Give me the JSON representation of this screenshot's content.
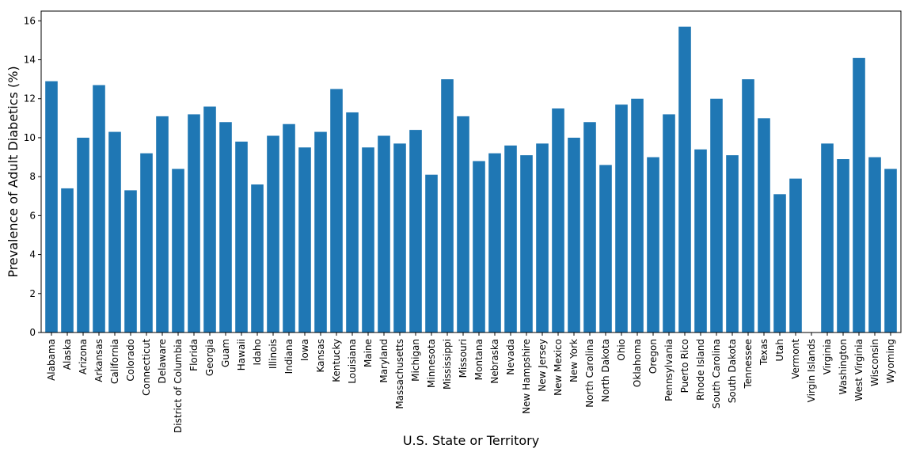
{
  "chart_data": {
    "type": "bar",
    "title": "",
    "xlabel": "U.S. State or Territory",
    "ylabel": "Prevalence of Adult Diabetics (%)",
    "ylim": [
      0,
      16.5
    ],
    "yticks": [
      0,
      2,
      4,
      6,
      8,
      10,
      12,
      14,
      16
    ],
    "grid": false,
    "bar_color": "#1f77b4",
    "categories": [
      "Alabama",
      "Alaska",
      "Arizona",
      "Arkansas",
      "California",
      "Colorado",
      "Connecticut",
      "Delaware",
      "District of Columbia",
      "Florida",
      "Georgia",
      "Guam",
      "Hawaii",
      "Idaho",
      "Illinois",
      "Indiana",
      "Iowa",
      "Kansas",
      "Kentucky",
      "Louisiana",
      "Maine",
      "Maryland",
      "Massachusetts",
      "Michigan",
      "Minnesota",
      "Mississippi",
      "Missouri",
      "Montana",
      "Nebraska",
      "Nevada",
      "New Hampshire",
      "New Jersey",
      "New Mexico",
      "New York",
      "North Carolina",
      "North Dakota",
      "Ohio",
      "Oklahoma",
      "Oregon",
      "Pennsylvania",
      "Puerto Rico",
      "Rhode Island",
      "South Carolina",
      "South Dakota",
      "Tennessee",
      "Texas",
      "Utah",
      "Vermont",
      "Virgin Islands",
      "Virginia",
      "Washington",
      "West Virginia",
      "Wisconsin",
      "Wyoming"
    ],
    "values": [
      12.9,
      7.4,
      10.0,
      12.7,
      10.3,
      7.3,
      9.2,
      11.1,
      8.4,
      11.2,
      11.6,
      10.8,
      9.8,
      7.6,
      10.1,
      10.7,
      9.5,
      10.3,
      12.5,
      11.3,
      9.5,
      10.1,
      9.7,
      10.4,
      8.1,
      13.0,
      11.1,
      8.8,
      9.2,
      9.6,
      9.1,
      9.7,
      11.5,
      10.0,
      10.8,
      8.6,
      11.7,
      12.0,
      9.0,
      11.2,
      15.7,
      9.4,
      12.0,
      9.1,
      13.0,
      11.0,
      7.1,
      7.9,
      null,
      9.7,
      8.9,
      14.1,
      9.0,
      8.4
    ]
  }
}
